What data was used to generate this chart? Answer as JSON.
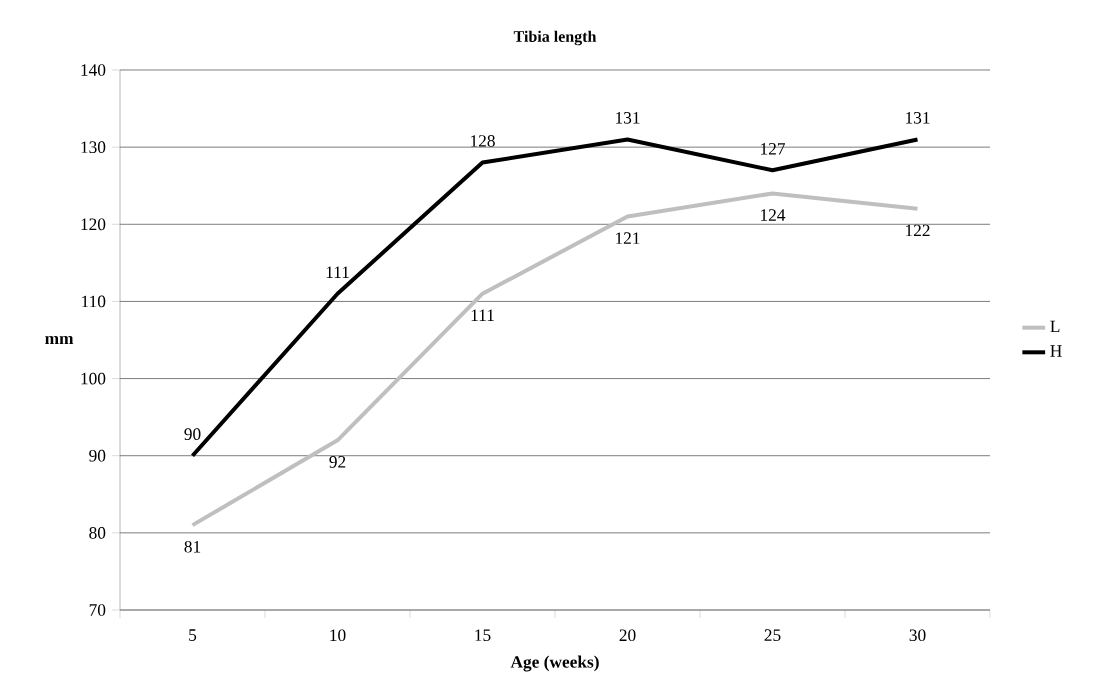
{
  "chart_data": {
    "type": "line",
    "title": "Tibia length",
    "xlabel": "Age (weeks)",
    "ylabel": "mm",
    "categories": [
      "5",
      "10",
      "15",
      "20",
      "25",
      "30"
    ],
    "series": [
      {
        "name": "L",
        "color": "#bfbfbf",
        "values": [
          81,
          92,
          111,
          121,
          124,
          122
        ]
      },
      {
        "name": "H",
        "color": "#000000",
        "values": [
          90,
          111,
          128,
          131,
          127,
          131
        ]
      }
    ],
    "ylim": [
      70,
      140
    ],
    "yticks": [
      70,
      80,
      90,
      100,
      110,
      120,
      130,
      140
    ],
    "grid": "y",
    "legend": "right",
    "marker": "none",
    "line_style": "solid",
    "data_labels": true
  }
}
